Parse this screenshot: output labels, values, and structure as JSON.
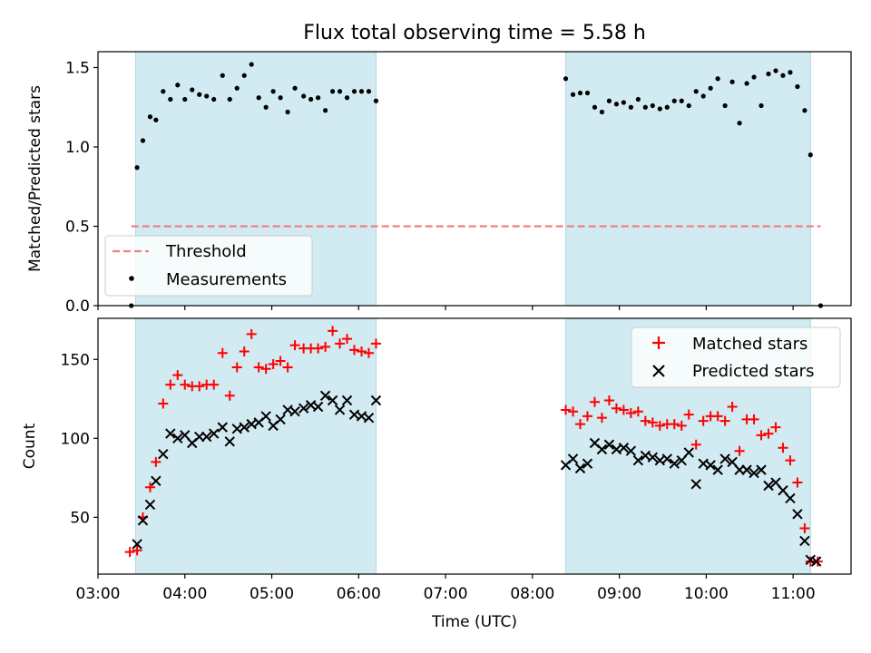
{
  "chart_data": [
    {
      "type": "scatter",
      "title": "Flux total observing time = 5.58 h",
      "ylabel": "Matched/Predicted stars",
      "xlim": [
        "03:00",
        "11:40"
      ],
      "ylim": [
        0,
        1.6
      ],
      "yticks": [
        0.0,
        0.5,
        1.0,
        1.5
      ],
      "ytick_labels": [
        "0.0",
        "0.5",
        "1.0",
        "1.5"
      ],
      "shaded_intervals": [
        [
          "03:26",
          "06:12"
        ],
        [
          "08:23",
          "11:12"
        ]
      ],
      "shade_color": "#add8e6",
      "threshold": {
        "name": "Threshold",
        "value": 0.5,
        "x_range": [
          "03:23",
          "11:19"
        ],
        "color": "#f08080",
        "style": "dashed"
      },
      "legend": {
        "location": "lower-left",
        "entries": [
          "Threshold",
          "Measurements"
        ]
      },
      "series": [
        {
          "name": "Measurements",
          "color": "#000000",
          "marker": "dot",
          "points": [
            [
              "03:23",
              0.0
            ],
            [
              "03:27",
              0.87
            ],
            [
              "03:31",
              1.04
            ],
            [
              "03:36",
              1.19
            ],
            [
              "03:40",
              1.17
            ],
            [
              "03:45",
              1.35
            ],
            [
              "03:50",
              1.3
            ],
            [
              "03:55",
              1.39
            ],
            [
              "04:00",
              1.3
            ],
            [
              "04:05",
              1.36
            ],
            [
              "04:10",
              1.33
            ],
            [
              "04:15",
              1.32
            ],
            [
              "04:20",
              1.3
            ],
            [
              "04:26",
              1.45
            ],
            [
              "04:31",
              1.3
            ],
            [
              "04:36",
              1.37
            ],
            [
              "04:41",
              1.45
            ],
            [
              "04:46",
              1.52
            ],
            [
              "04:51",
              1.31
            ],
            [
              "04:56",
              1.25
            ],
            [
              "05:01",
              1.35
            ],
            [
              "05:06",
              1.31
            ],
            [
              "05:11",
              1.22
            ],
            [
              "05:16",
              1.37
            ],
            [
              "05:22",
              1.32
            ],
            [
              "05:27",
              1.3
            ],
            [
              "05:32",
              1.31
            ],
            [
              "05:37",
              1.23
            ],
            [
              "05:42",
              1.35
            ],
            [
              "05:47",
              1.35
            ],
            [
              "05:52",
              1.31
            ],
            [
              "05:57",
              1.35
            ],
            [
              "06:02",
              1.35
            ],
            [
              "06:07",
              1.35
            ],
            [
              "06:12",
              1.29
            ],
            [
              "08:23",
              1.43
            ],
            [
              "08:28",
              1.33
            ],
            [
              "08:33",
              1.34
            ],
            [
              "08:38",
              1.34
            ],
            [
              "08:43",
              1.25
            ],
            [
              "08:48",
              1.22
            ],
            [
              "08:53",
              1.29
            ],
            [
              "08:58",
              1.27
            ],
            [
              "09:03",
              1.28
            ],
            [
              "09:08",
              1.25
            ],
            [
              "09:13",
              1.3
            ],
            [
              "09:18",
              1.25
            ],
            [
              "09:23",
              1.26
            ],
            [
              "09:28",
              1.24
            ],
            [
              "09:33",
              1.25
            ],
            [
              "09:38",
              1.29
            ],
            [
              "09:43",
              1.29
            ],
            [
              "09:48",
              1.26
            ],
            [
              "09:53",
              1.35
            ],
            [
              "09:58",
              1.32
            ],
            [
              "10:03",
              1.37
            ],
            [
              "10:08",
              1.43
            ],
            [
              "10:13",
              1.26
            ],
            [
              "10:18",
              1.41
            ],
            [
              "10:23",
              1.15
            ],
            [
              "10:28",
              1.4
            ],
            [
              "10:33",
              1.44
            ],
            [
              "10:38",
              1.26
            ],
            [
              "10:43",
              1.46
            ],
            [
              "10:48",
              1.48
            ],
            [
              "10:53",
              1.45
            ],
            [
              "10:58",
              1.47
            ],
            [
              "11:03",
              1.38
            ],
            [
              "11:08",
              1.23
            ],
            [
              "11:12",
              0.95
            ],
            [
              "11:19",
              0.0
            ]
          ]
        }
      ]
    },
    {
      "type": "scatter",
      "xlabel": "Time (UTC)",
      "ylabel": "Count",
      "xlim": [
        "03:00",
        "11:40"
      ],
      "ylim": [
        14,
        176
      ],
      "xtick_labels": [
        "03:00",
        "04:00",
        "05:00",
        "06:00",
        "07:00",
        "08:00",
        "09:00",
        "10:00",
        "11:00"
      ],
      "yticks": [
        50,
        100,
        150
      ],
      "ytick_labels": [
        "50",
        "100",
        "150"
      ],
      "shaded_intervals": [
        [
          "03:26",
          "06:12"
        ],
        [
          "08:23",
          "11:12"
        ]
      ],
      "shade_color": "#add8e6",
      "legend": {
        "location": "upper-right",
        "entries": [
          "Matched stars",
          "Predicted stars"
        ]
      },
      "series": [
        {
          "name": "Matched stars",
          "color": "#ff0000",
          "marker": "plus",
          "points": [
            [
              "03:22",
              28
            ],
            [
              "03:27",
              29
            ],
            [
              "03:31",
              50
            ],
            [
              "03:36",
              69
            ],
            [
              "03:40",
              85
            ],
            [
              "03:45",
              122
            ],
            [
              "03:50",
              134
            ],
            [
              "03:55",
              140
            ],
            [
              "04:00",
              134
            ],
            [
              "04:05",
              133
            ],
            [
              "04:10",
              133
            ],
            [
              "04:15",
              134
            ],
            [
              "04:20",
              134
            ],
            [
              "04:26",
              154
            ],
            [
              "04:31",
              127
            ],
            [
              "04:36",
              145
            ],
            [
              "04:41",
              155
            ],
            [
              "04:46",
              166
            ],
            [
              "04:51",
              145
            ],
            [
              "04:56",
              144
            ],
            [
              "05:01",
              147
            ],
            [
              "05:06",
              149
            ],
            [
              "05:11",
              145
            ],
            [
              "05:16",
              159
            ],
            [
              "05:22",
              157
            ],
            [
              "05:27",
              157
            ],
            [
              "05:32",
              157
            ],
            [
              "05:37",
              158
            ],
            [
              "05:42",
              168
            ],
            [
              "05:47",
              160
            ],
            [
              "05:52",
              163
            ],
            [
              "05:57",
              156
            ],
            [
              "06:02",
              155
            ],
            [
              "06:07",
              154
            ],
            [
              "06:12",
              160
            ],
            [
              "08:23",
              118
            ],
            [
              "08:28",
              117
            ],
            [
              "08:33",
              109
            ],
            [
              "08:38",
              114
            ],
            [
              "08:43",
              123
            ],
            [
              "08:48",
              113
            ],
            [
              "08:53",
              124
            ],
            [
              "08:58",
              119
            ],
            [
              "09:03",
              118
            ],
            [
              "09:08",
              116
            ],
            [
              "09:13",
              117
            ],
            [
              "09:18",
              111
            ],
            [
              "09:23",
              110
            ],
            [
              "09:28",
              108
            ],
            [
              "09:33",
              109
            ],
            [
              "09:38",
              109
            ],
            [
              "09:43",
              108
            ],
            [
              "09:48",
              115
            ],
            [
              "09:53",
              96
            ],
            [
              "09:58",
              111
            ],
            [
              "10:03",
              114
            ],
            [
              "10:08",
              114
            ],
            [
              "10:13",
              111
            ],
            [
              "10:18",
              120
            ],
            [
              "10:23",
              92
            ],
            [
              "10:28",
              112
            ],
            [
              "10:33",
              112
            ],
            [
              "10:38",
              102
            ],
            [
              "10:43",
              103
            ],
            [
              "10:48",
              107
            ],
            [
              "10:53",
              94
            ],
            [
              "10:58",
              86
            ],
            [
              "11:03",
              72
            ],
            [
              "11:08",
              43
            ],
            [
              "11:12",
              22
            ],
            [
              "11:17",
              22
            ]
          ]
        },
        {
          "name": "Predicted stars",
          "color": "#000000",
          "marker": "cross",
          "points": [
            [
              "03:27",
              33
            ],
            [
              "03:31",
              48
            ],
            [
              "03:36",
              58
            ],
            [
              "03:40",
              73
            ],
            [
              "03:45",
              90
            ],
            [
              "03:50",
              103
            ],
            [
              "03:55",
              100
            ],
            [
              "04:00",
              102
            ],
            [
              "04:05",
              97
            ],
            [
              "04:10",
              101
            ],
            [
              "04:15",
              101
            ],
            [
              "04:20",
              103
            ],
            [
              "04:26",
              107
            ],
            [
              "04:31",
              98
            ],
            [
              "04:36",
              106
            ],
            [
              "04:41",
              107
            ],
            [
              "04:46",
              109
            ],
            [
              "04:51",
              110
            ],
            [
              "04:56",
              114
            ],
            [
              "05:01",
              108
            ],
            [
              "05:06",
              112
            ],
            [
              "05:11",
              118
            ],
            [
              "05:16",
              117
            ],
            [
              "05:22",
              119
            ],
            [
              "05:27",
              121
            ],
            [
              "05:32",
              120
            ],
            [
              "05:37",
              127
            ],
            [
              "05:42",
              124
            ],
            [
              "05:47",
              118
            ],
            [
              "05:52",
              124
            ],
            [
              "05:57",
              115
            ],
            [
              "06:02",
              114
            ],
            [
              "06:07",
              113
            ],
            [
              "06:12",
              124
            ],
            [
              "08:23",
              83
            ],
            [
              "08:28",
              87
            ],
            [
              "08:33",
              81
            ],
            [
              "08:38",
              84
            ],
            [
              "08:43",
              97
            ],
            [
              "08:48",
              93
            ],
            [
              "08:53",
              96
            ],
            [
              "08:58",
              93
            ],
            [
              "09:03",
              94
            ],
            [
              "09:08",
              92
            ],
            [
              "09:13",
              86
            ],
            [
              "09:18",
              89
            ],
            [
              "09:23",
              88
            ],
            [
              "09:28",
              86
            ],
            [
              "09:33",
              87
            ],
            [
              "09:38",
              84
            ],
            [
              "09:43",
              86
            ],
            [
              "09:48",
              91
            ],
            [
              "09:53",
              71
            ],
            [
              "09:58",
              84
            ],
            [
              "10:03",
              83
            ],
            [
              "10:08",
              80
            ],
            [
              "10:13",
              87
            ],
            [
              "10:18",
              85
            ],
            [
              "10:23",
              80
            ],
            [
              "10:28",
              80
            ],
            [
              "10:33",
              78
            ],
            [
              "10:38",
              80
            ],
            [
              "10:43",
              70
            ],
            [
              "10:48",
              72
            ],
            [
              "10:53",
              67
            ],
            [
              "10:58",
              62
            ],
            [
              "11:03",
              52
            ],
            [
              "11:08",
              35
            ],
            [
              "11:12",
              23
            ],
            [
              "11:16",
              22
            ]
          ]
        }
      ]
    }
  ]
}
